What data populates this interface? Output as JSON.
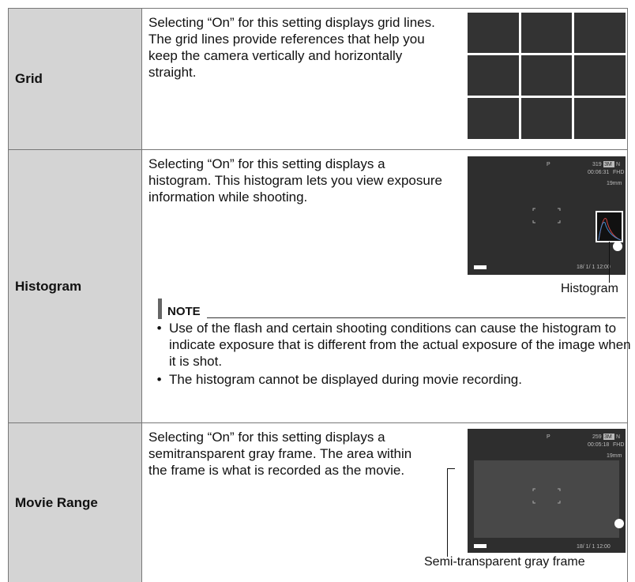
{
  "rows": [
    {
      "label": "Grid",
      "description": "Selecting “On” for this setting displays grid lines. The grid lines provide references that help you keep the camera vertically and horizontally straight."
    },
    {
      "label": "Histogram",
      "description": "Selecting “On” for this setting displays a histogram. This histogram lets you view exposure information while shooting.",
      "screen": {
        "mode": "P",
        "shots": "319",
        "size": "3M",
        "quality": "N",
        "time": "00:06:31",
        "movie": "FHD",
        "focal": "19mm",
        "date": "18/ 1/ 1 12:00"
      },
      "callout": "Histogram",
      "note": {
        "title": "NOTE",
        "items": [
          "Use of the flash and certain shooting conditions can cause the histogram to indicate exposure that is different from the actual exposure of the image when it is shot.",
          "The histogram cannot be displayed during movie recording."
        ]
      }
    },
    {
      "label": "Movie Range",
      "description": "Selecting “On” for this setting displays a semitransparent gray frame. The area within the frame is what is recorded as the movie.",
      "screen": {
        "mode": "P",
        "shots": "259",
        "size": "3M",
        "quality": "N",
        "time": "00:05:18",
        "movie": "FHD",
        "focal": "19mm",
        "date": "18/ 1/ 1 12:00"
      },
      "callout": "Semi-transparent gray frame"
    }
  ]
}
